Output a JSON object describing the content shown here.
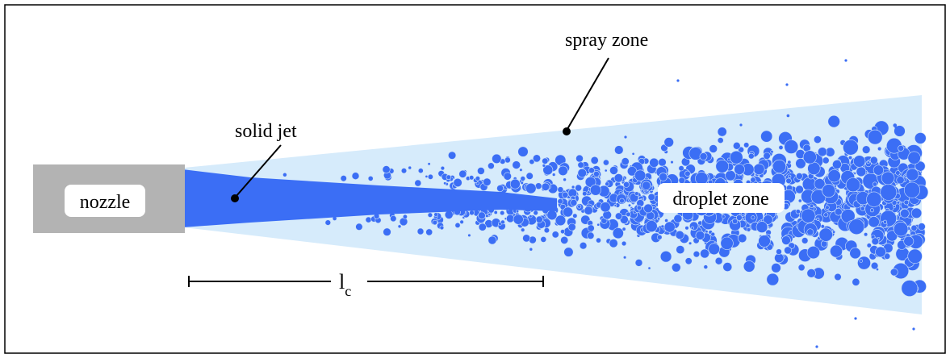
{
  "labels": {
    "nozzle": "nozzle",
    "solid_jet": "solid jet",
    "spray_zone": "spray zone",
    "droplet_zone": "droplet zone",
    "length_main": "l",
    "length_sub": "c"
  },
  "colors": {
    "frame": "#000000",
    "nozzle_fill": "#b3b3b3",
    "spray_cone": "#d6ebfb",
    "jet": "#3b6ef5",
    "droplet_outline": "#cfe3f7",
    "label_box": "#ffffff",
    "text": "#000000"
  }
}
